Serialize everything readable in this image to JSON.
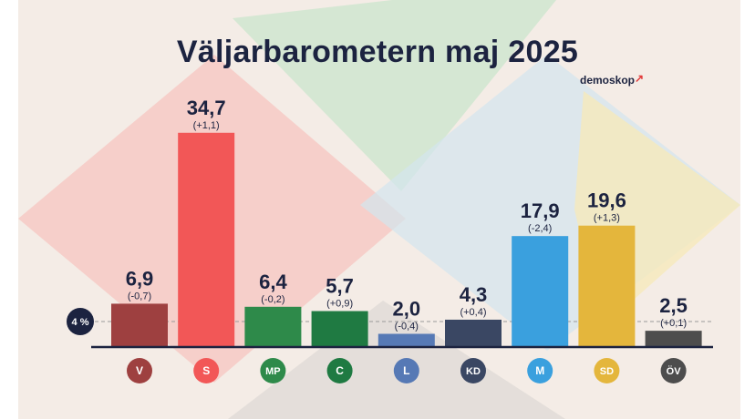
{
  "title": "Väljarbarometern maj 2025",
  "brand": "demoskop",
  "threshold_label": "4 %",
  "colors": {
    "V": "#9e4040",
    "S": "#f25757",
    "MP": "#2e8a4a",
    "C": "#1f7a42",
    "L": "#5679b5",
    "KD": "#3a4763",
    "M": "#3aa0de",
    "SD": "#e4b63c",
    "ÖV": "#4d4d4d",
    "axis": "#1c2340",
    "text": "#1c2340"
  },
  "chart_data": {
    "type": "bar",
    "title": "Väljarbarometern maj 2025",
    "categories": [
      "V",
      "S",
      "MP",
      "C",
      "L",
      "KD",
      "M",
      "SD",
      "ÖV"
    ],
    "values": [
      6.9,
      34.7,
      6.4,
      5.7,
      2.0,
      4.3,
      17.9,
      19.6,
      2.5
    ],
    "value_labels": [
      "6,9",
      "34,7",
      "6,4",
      "5,7",
      "2,0",
      "4,3",
      "17,9",
      "19,6",
      "2,5"
    ],
    "change_labels": [
      "(-0,7)",
      "(+1,1)",
      "(-0,2)",
      "(+0,9)",
      "(-0,4)",
      "(+0,4)",
      "(-2,4)",
      "(+1,3)",
      "(+0,1)"
    ],
    "threshold": 4,
    "ylim": [
      0,
      40
    ],
    "grid": false,
    "legend": "none"
  }
}
